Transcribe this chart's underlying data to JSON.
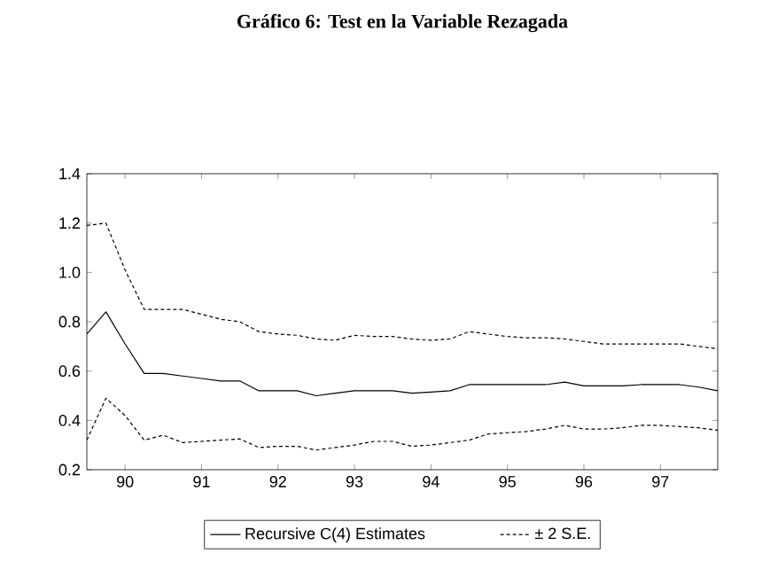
{
  "chart_data": {
    "type": "line",
    "title": "Gráfico 6: Test en la Variable Rezagada",
    "x": [
      1989.5,
      1989.75,
      1990,
      1990.25,
      1990.5,
      1990.75,
      1991,
      1991.25,
      1991.5,
      1991.75,
      1992,
      1992.25,
      1992.5,
      1992.75,
      1993,
      1993.25,
      1993.5,
      1993.75,
      1994,
      1994.25,
      1994.5,
      1994.75,
      1995,
      1995.25,
      1995.5,
      1995.75,
      1996,
      1996.25,
      1996.5,
      1996.75,
      1997,
      1997.25,
      1997.5,
      1997.75
    ],
    "series": [
      {
        "name": "Recursive C(4) Estimates",
        "color": "#000000",
        "line_style": "solid",
        "values": [
          0.75,
          0.84,
          0.71,
          0.59,
          0.59,
          0.58,
          0.57,
          0.56,
          0.56,
          0.52,
          0.52,
          0.52,
          0.5,
          0.51,
          0.52,
          0.52,
          0.52,
          0.51,
          0.515,
          0.52,
          0.545,
          0.545,
          0.545,
          0.545,
          0.545,
          0.555,
          0.54,
          0.54,
          0.54,
          0.545,
          0.545,
          0.545,
          0.535,
          0.52
        ]
      },
      {
        "name": "± 2 S.E.",
        "color": "#000000",
        "line_style": "dashed",
        "values": [
          1.19,
          1.2,
          1.01,
          0.85,
          0.85,
          0.85,
          0.83,
          0.81,
          0.8,
          0.76,
          0.75,
          0.745,
          0.73,
          0.725,
          0.745,
          0.74,
          0.74,
          0.73,
          0.725,
          0.73,
          0.76,
          0.75,
          0.74,
          0.735,
          0.735,
          0.73,
          0.72,
          0.71,
          0.71,
          0.71,
          0.71,
          0.71,
          0.7,
          0.69
        ]
      },
      {
        "color": "#000000",
        "line_style": "dashed",
        "values": [
          0.32,
          0.49,
          0.42,
          0.32,
          0.34,
          0.31,
          0.315,
          0.32,
          0.325,
          0.29,
          0.295,
          0.295,
          0.28,
          0.29,
          0.3,
          0.315,
          0.315,
          0.295,
          0.3,
          0.31,
          0.32,
          0.345,
          0.35,
          0.355,
          0.365,
          0.38,
          0.365,
          0.365,
          0.37,
          0.38,
          0.38,
          0.375,
          0.37,
          0.36
        ]
      }
    ],
    "xlim": [
      1989.5,
      1997.75
    ],
    "xticks": [
      {
        "value": 1990,
        "label": "90"
      },
      {
        "value": 1991,
        "label": "91"
      },
      {
        "value": 1992,
        "label": "92"
      },
      {
        "value": 1993,
        "label": "93"
      },
      {
        "value": 1994,
        "label": "94"
      },
      {
        "value": 1995,
        "label": "95"
      },
      {
        "value": 1996,
        "label": "96"
      },
      {
        "value": 1997,
        "label": "97"
      }
    ],
    "ylim": [
      0.2,
      1.4
    ],
    "yticks": [
      0.2,
      0.4,
      0.6,
      0.8,
      {
        "value": 1.0,
        "label": "1.0"
      },
      1.2,
      1.4
    ],
    "legend": "bottom",
    "grid": false,
    "marker": "none"
  }
}
